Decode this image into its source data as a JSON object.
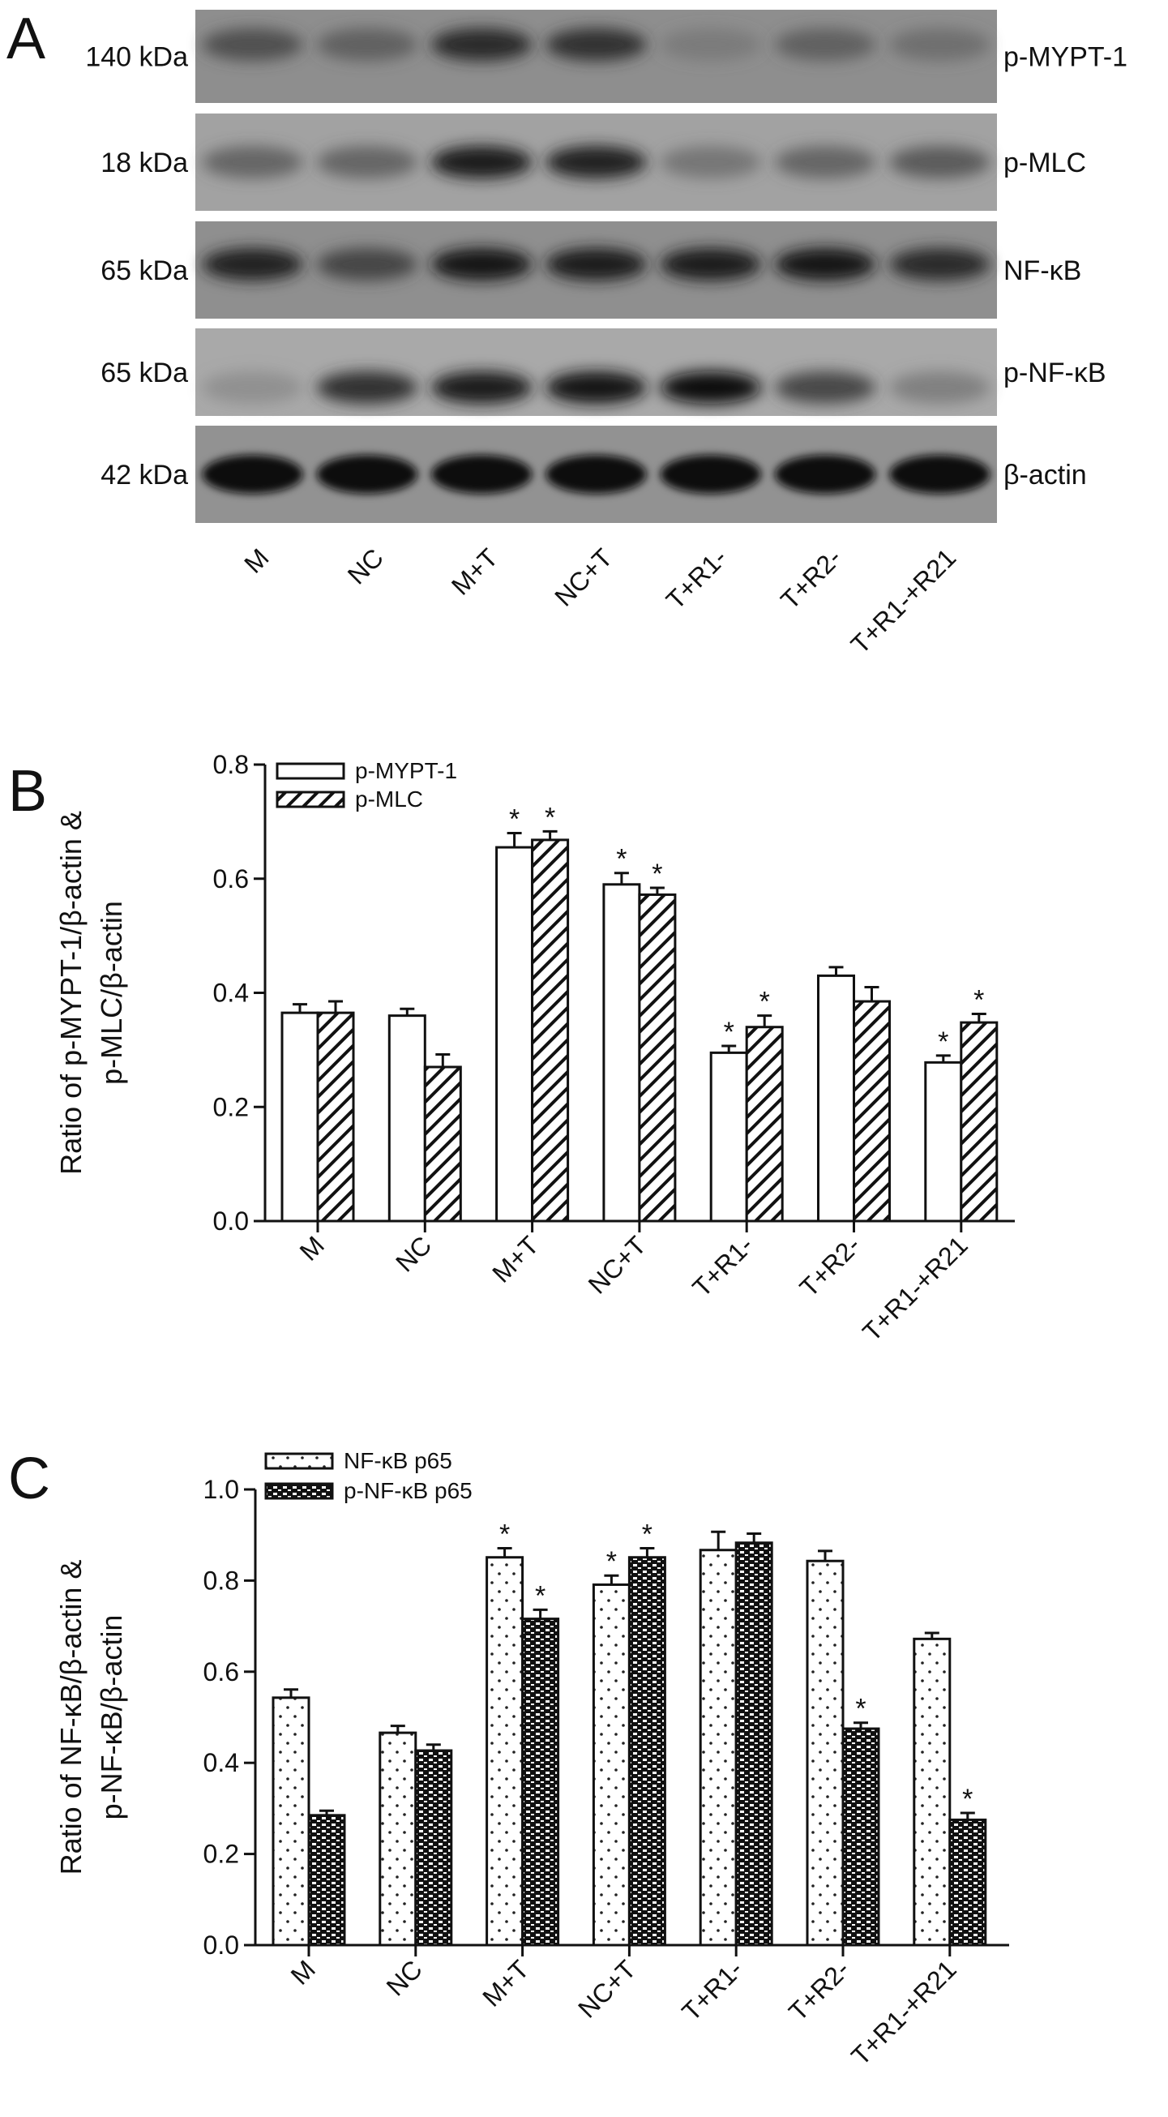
{
  "panel_a": {
    "letter": "A",
    "lanes": [
      "M",
      "NC",
      "M+T",
      "NC+T",
      "T+R1-",
      "T+R2-",
      "T+R1-+R21"
    ],
    "rows": [
      {
        "mw": "140 kDa",
        "protein": "p-MYPT-1"
      },
      {
        "mw": "18 kDa",
        "protein": "p-MLC"
      },
      {
        "mw": "65 kDa",
        "protein": "NF-κB"
      },
      {
        "mw": "65 kDa",
        "protein": "p-NF-κB"
      },
      {
        "mw": "42 kDa",
        "protein": "β-actin"
      }
    ]
  },
  "chart_data": [
    {
      "panel": "B",
      "type": "bar",
      "ylabel": [
        "Ratio of p-MYPT-1/β-actin &",
        "p-MLC/β-actin"
      ],
      "xlabel": "",
      "ylim": [
        0,
        0.8
      ],
      "yticks": [
        "0.0",
        "0.2",
        "0.4",
        "0.6",
        "0.8"
      ],
      "grid": false,
      "legend_position": "top-left",
      "categories": [
        "M",
        "NC",
        "M+T",
        "NC+T",
        "T+R1-",
        "T+R2-",
        "T+R1-+R21"
      ],
      "series": [
        {
          "name": "p-MYPT-1",
          "pattern": "open",
          "values": [
            0.365,
            0.36,
            0.655,
            0.59,
            0.295,
            0.43,
            0.278
          ],
          "errors": [
            0.015,
            0.012,
            0.025,
            0.02,
            0.012,
            0.015,
            0.012
          ],
          "significant": [
            false,
            false,
            true,
            true,
            true,
            false,
            true
          ]
        },
        {
          "name": "p-MLC",
          "pattern": "hatched",
          "values": [
            0.365,
            0.27,
            0.668,
            0.572,
            0.34,
            0.385,
            0.348
          ],
          "errors": [
            0.02,
            0.022,
            0.015,
            0.012,
            0.02,
            0.025,
            0.015
          ],
          "significant": [
            false,
            false,
            true,
            true,
            true,
            false,
            true
          ]
        }
      ],
      "significance_mark": "*"
    },
    {
      "panel": "C",
      "type": "bar",
      "ylabel": [
        "Ratio of NF-κB/β-actin &",
        "p-NF-κB/β-actin"
      ],
      "xlabel": "",
      "ylim": [
        0,
        1.0
      ],
      "yticks": [
        "0.0",
        "0.2",
        "0.4",
        "0.6",
        "0.8",
        "1.0"
      ],
      "grid": false,
      "legend_position": "top-left",
      "categories": [
        "M",
        "NC",
        "M+T",
        "NC+T",
        "T+R1-",
        "T+R2-",
        "T+R1-+R21"
      ],
      "series": [
        {
          "name": "NF-κB p65",
          "pattern": "dotted",
          "values": [
            0.543,
            0.466,
            0.851,
            0.791,
            0.867,
            0.843,
            0.672
          ],
          "errors": [
            0.018,
            0.015,
            0.02,
            0.02,
            0.04,
            0.022,
            0.013
          ],
          "significant": [
            false,
            false,
            true,
            true,
            false,
            false,
            false
          ]
        },
        {
          "name": "p-NF-κB p65",
          "pattern": "checkered",
          "values": [
            0.285,
            0.427,
            0.716,
            0.851,
            0.883,
            0.475,
            0.275
          ],
          "errors": [
            0.01,
            0.013,
            0.02,
            0.02,
            0.02,
            0.013,
            0.015
          ],
          "significant": [
            false,
            false,
            true,
            true,
            false,
            true,
            true
          ]
        }
      ],
      "significance_mark": "*"
    }
  ]
}
